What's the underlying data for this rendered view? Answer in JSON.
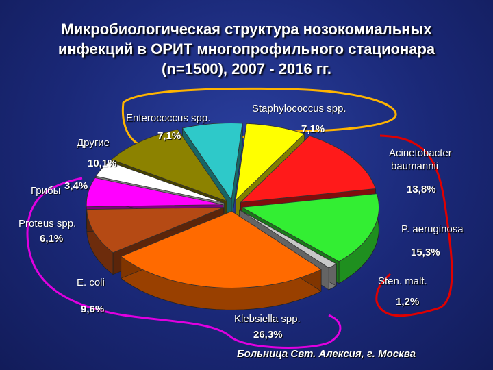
{
  "title_lines": [
    "Микробиологическая структура нозокомиальных",
    "инфекций в ОРИТ многопрофильного стационара",
    "(n=1500), 2007 - 2016 гг."
  ],
  "footer": "Больница Свт. Алексия, г. Москва",
  "chart_data": {
    "type": "pie",
    "title": "Микробиологическая структура нозокомиальных инфекций в ОРИТ многопрофильного стационара (n=1500), 2007 - 2016 гг.",
    "slices": [
      {
        "label": "Staphylococcus spp.",
        "value": 7.1,
        "pct_label": "7,1%",
        "color": "#ffff00"
      },
      {
        "label": "Acinetobacter baumannii",
        "value": 13.8,
        "pct_label": "13,8%",
        "color": "#ff1a1a"
      },
      {
        "label": "P. aeruginosa",
        "value": 15.3,
        "pct_label": "15,3%",
        "color": "#33ee33"
      },
      {
        "label": "Sten. malt.",
        "value": 1.2,
        "pct_label": "1,2%",
        "color": "#c8c8c8"
      },
      {
        "label": "Klebsiella spp.",
        "value": 26.3,
        "pct_label": "26,3%",
        "color": "#ff6a00"
      },
      {
        "label": "E. coli",
        "value": 9.6,
        "pct_label": "9,6%",
        "color": "#b54a14"
      },
      {
        "label": "Proteus spp.",
        "value": 6.1,
        "pct_label": "6,1%",
        "color": "#ff00ff"
      },
      {
        "label": "Грибы",
        "value": 3.4,
        "pct_label": "3,4%",
        "color": "#ffffff"
      },
      {
        "label": "Другие",
        "value": 10.1,
        "pct_label": "10,1%",
        "color": "#8c8200"
      },
      {
        "label": "Enterococcus spp.",
        "value": 7.1,
        "pct_label": "7,1%",
        "color": "#2ec9c9"
      }
    ],
    "groupings": [
      {
        "members": [
          "Enterococcus spp.",
          "Staphylococcus spp."
        ],
        "color": "#ffb400"
      },
      {
        "members": [
          "Acinetobacter baumannii",
          "P. aeruginosa",
          "Sten. malt."
        ],
        "color": "#e00000"
      },
      {
        "members": [
          "Другие",
          "Грибы",
          "Proteus spp.",
          "E. coli",
          "Klebsiella spp."
        ],
        "color": "#e000e0"
      }
    ]
  }
}
